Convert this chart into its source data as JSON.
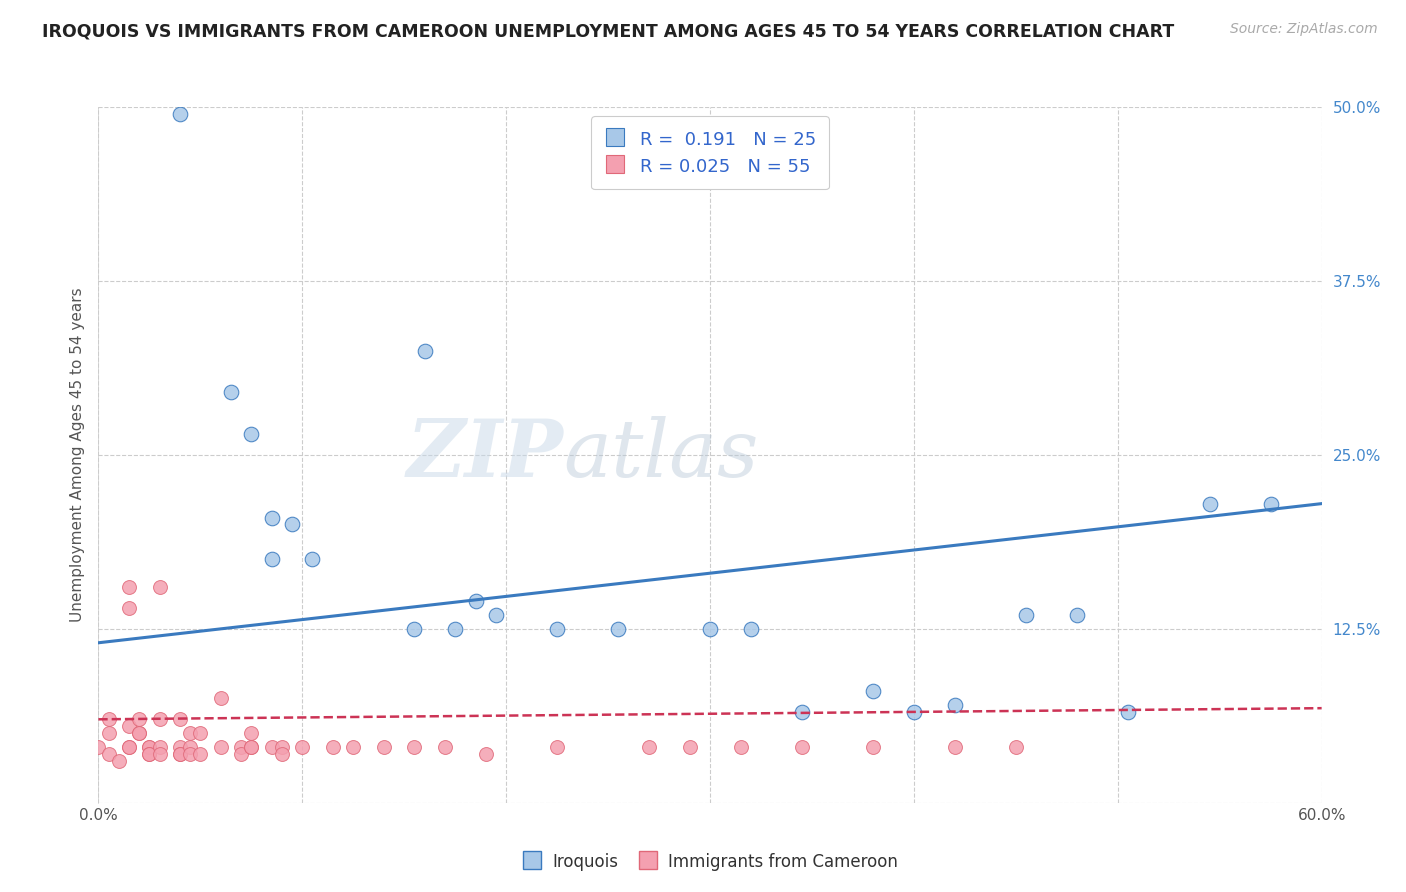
{
  "title": "IROQUOIS VS IMMIGRANTS FROM CAMEROON UNEMPLOYMENT AMONG AGES 45 TO 54 YEARS CORRELATION CHART",
  "source": "Source: ZipAtlas.com",
  "xlabel": "",
  "ylabel": "Unemployment Among Ages 45 to 54 years",
  "xlim": [
    0.0,
    0.6
  ],
  "ylim": [
    0.0,
    0.5
  ],
  "xticks": [
    0.0,
    0.1,
    0.2,
    0.3,
    0.4,
    0.5,
    0.6
  ],
  "xticklabels": [
    "0.0%",
    "",
    "",
    "",
    "",
    "",
    "60.0%"
  ],
  "yticks": [
    0.0,
    0.125,
    0.25,
    0.375,
    0.5
  ],
  "yticklabels": [
    "",
    "12.5%",
    "25.0%",
    "37.5%",
    "50.0%"
  ],
  "iroquois_color": "#a8c8e8",
  "cameroon_color": "#f4a0b0",
  "iroquois_line_color": "#3a7abf",
  "cameroon_line_color": "#cc3355",
  "iroquois_R": 0.191,
  "iroquois_N": 25,
  "cameroon_R": 0.025,
  "cameroon_N": 55,
  "watermark_zip": "ZIP",
  "watermark_atlas": "atlas",
  "iroquois_trendline": [
    [
      0.0,
      0.115
    ],
    [
      0.6,
      0.215
    ]
  ],
  "cameroon_trendline": [
    [
      0.0,
      0.06
    ],
    [
      0.6,
      0.068
    ]
  ],
  "iroquois_points": [
    [
      0.04,
      0.495
    ],
    [
      0.065,
      0.295
    ],
    [
      0.075,
      0.265
    ],
    [
      0.085,
      0.205
    ],
    [
      0.095,
      0.2
    ],
    [
      0.16,
      0.325
    ],
    [
      0.185,
      0.145
    ],
    [
      0.195,
      0.135
    ],
    [
      0.085,
      0.175
    ],
    [
      0.105,
      0.175
    ],
    [
      0.155,
      0.125
    ],
    [
      0.175,
      0.125
    ],
    [
      0.225,
      0.125
    ],
    [
      0.255,
      0.125
    ],
    [
      0.3,
      0.125
    ],
    [
      0.32,
      0.125
    ],
    [
      0.345,
      0.065
    ],
    [
      0.38,
      0.08
    ],
    [
      0.4,
      0.065
    ],
    [
      0.42,
      0.07
    ],
    [
      0.455,
      0.135
    ],
    [
      0.48,
      0.135
    ],
    [
      0.505,
      0.065
    ],
    [
      0.545,
      0.215
    ],
    [
      0.575,
      0.215
    ]
  ],
  "cameroon_points": [
    [
      0.0,
      0.04
    ],
    [
      0.005,
      0.05
    ],
    [
      0.005,
      0.035
    ],
    [
      0.005,
      0.06
    ],
    [
      0.01,
      0.03
    ],
    [
      0.015,
      0.155
    ],
    [
      0.015,
      0.14
    ],
    [
      0.015,
      0.055
    ],
    [
      0.015,
      0.04
    ],
    [
      0.015,
      0.04
    ],
    [
      0.02,
      0.06
    ],
    [
      0.02,
      0.05
    ],
    [
      0.02,
      0.05
    ],
    [
      0.025,
      0.04
    ],
    [
      0.025,
      0.04
    ],
    [
      0.025,
      0.035
    ],
    [
      0.025,
      0.035
    ],
    [
      0.03,
      0.155
    ],
    [
      0.03,
      0.06
    ],
    [
      0.03,
      0.04
    ],
    [
      0.03,
      0.035
    ],
    [
      0.04,
      0.06
    ],
    [
      0.04,
      0.04
    ],
    [
      0.04,
      0.035
    ],
    [
      0.04,
      0.035
    ],
    [
      0.045,
      0.05
    ],
    [
      0.045,
      0.04
    ],
    [
      0.045,
      0.035
    ],
    [
      0.05,
      0.05
    ],
    [
      0.05,
      0.035
    ],
    [
      0.06,
      0.075
    ],
    [
      0.06,
      0.04
    ],
    [
      0.07,
      0.04
    ],
    [
      0.07,
      0.035
    ],
    [
      0.075,
      0.05
    ],
    [
      0.075,
      0.04
    ],
    [
      0.075,
      0.04
    ],
    [
      0.085,
      0.04
    ],
    [
      0.09,
      0.04
    ],
    [
      0.09,
      0.035
    ],
    [
      0.1,
      0.04
    ],
    [
      0.115,
      0.04
    ],
    [
      0.125,
      0.04
    ],
    [
      0.14,
      0.04
    ],
    [
      0.155,
      0.04
    ],
    [
      0.17,
      0.04
    ],
    [
      0.19,
      0.035
    ],
    [
      0.225,
      0.04
    ],
    [
      0.27,
      0.04
    ],
    [
      0.29,
      0.04
    ],
    [
      0.315,
      0.04
    ],
    [
      0.345,
      0.04
    ],
    [
      0.38,
      0.04
    ],
    [
      0.42,
      0.04
    ],
    [
      0.45,
      0.04
    ]
  ]
}
